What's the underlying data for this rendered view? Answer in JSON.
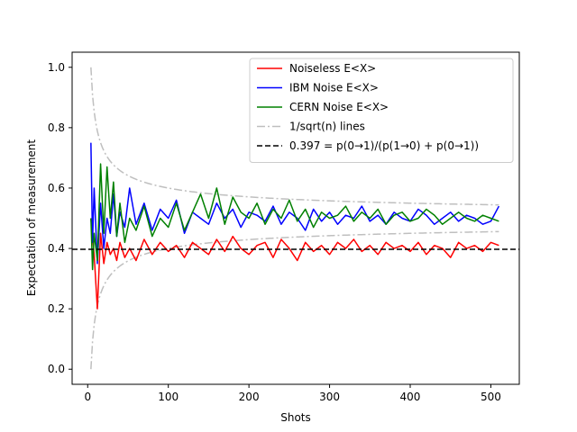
{
  "chart_data": {
    "type": "line",
    "xlabel": "Shots",
    "ylabel": "Expectation of measurement",
    "xlim": [
      -19.3,
      535.3
    ],
    "ylim": [
      -0.05,
      1.05
    ],
    "xticks": [
      0,
      100,
      200,
      300,
      400,
      500
    ],
    "yticks": [
      0.0,
      0.2,
      0.4,
      0.6,
      0.8,
      1.0
    ],
    "ytick_labels": [
      "0.0",
      "0.2",
      "0.4",
      "0.6",
      "0.8",
      "1.0"
    ],
    "grid": false,
    "legend_position": "top-right",
    "reference_line": {
      "label": "0.397 = p(0→1)/(p(1→0) + p(0→1))",
      "y": 0.397,
      "color": "#000000",
      "style": "dashed"
    },
    "bound_lines": {
      "label": "1/sqrt(n) lines",
      "color": "#bfbfbf",
      "style": "dashdot",
      "center": 0.5,
      "x_start": 4,
      "x_end": 510
    },
    "series": [
      {
        "name": "Noiseless E<X>",
        "color": "#ff0000",
        "x": [
          4,
          8,
          12,
          16,
          20,
          24,
          28,
          32,
          36,
          40,
          46,
          52,
          60,
          70,
          80,
          90,
          100,
          110,
          120,
          130,
          140,
          150,
          160,
          170,
          180,
          190,
          200,
          210,
          220,
          230,
          240,
          250,
          260,
          270,
          280,
          290,
          300,
          310,
          320,
          330,
          340,
          350,
          360,
          370,
          380,
          390,
          400,
          410,
          420,
          430,
          440,
          450,
          460,
          470,
          480,
          490,
          500,
          510
        ],
        "y": [
          0.5,
          0.38,
          0.2,
          0.45,
          0.35,
          0.42,
          0.38,
          0.4,
          0.36,
          0.42,
          0.37,
          0.4,
          0.36,
          0.43,
          0.38,
          0.42,
          0.39,
          0.41,
          0.37,
          0.42,
          0.4,
          0.38,
          0.43,
          0.39,
          0.44,
          0.4,
          0.38,
          0.41,
          0.42,
          0.37,
          0.43,
          0.4,
          0.36,
          0.42,
          0.39,
          0.41,
          0.38,
          0.42,
          0.4,
          0.43,
          0.39,
          0.41,
          0.38,
          0.42,
          0.4,
          0.41,
          0.39,
          0.42,
          0.38,
          0.41,
          0.4,
          0.37,
          0.42,
          0.4,
          0.41,
          0.39,
          0.42,
          0.41
        ]
      },
      {
        "name": "IBM Noise E<X>",
        "color": "#0000ff",
        "x": [
          4,
          6,
          8,
          12,
          16,
          20,
          24,
          28,
          32,
          36,
          40,
          46,
          52,
          60,
          70,
          80,
          90,
          100,
          110,
          120,
          130,
          140,
          150,
          160,
          170,
          180,
          190,
          200,
          210,
          220,
          230,
          240,
          250,
          260,
          270,
          280,
          290,
          300,
          310,
          320,
          330,
          340,
          350,
          360,
          370,
          380,
          390,
          400,
          410,
          420,
          430,
          440,
          450,
          460,
          470,
          480,
          490,
          500,
          510
        ],
        "y": [
          0.75,
          0.42,
          0.6,
          0.35,
          0.55,
          0.4,
          0.5,
          0.45,
          0.58,
          0.44,
          0.52,
          0.47,
          0.6,
          0.48,
          0.55,
          0.46,
          0.53,
          0.5,
          0.56,
          0.45,
          0.52,
          0.5,
          0.48,
          0.55,
          0.5,
          0.53,
          0.47,
          0.52,
          0.51,
          0.49,
          0.54,
          0.48,
          0.52,
          0.5,
          0.46,
          0.53,
          0.49,
          0.52,
          0.48,
          0.51,
          0.5,
          0.54,
          0.49,
          0.51,
          0.48,
          0.52,
          0.5,
          0.49,
          0.53,
          0.51,
          0.48,
          0.5,
          0.52,
          0.49,
          0.51,
          0.5,
          0.48,
          0.49,
          0.54
        ]
      },
      {
        "name": "CERN Noise E<X>",
        "color": "#008000",
        "x": [
          4,
          6,
          8,
          12,
          16,
          20,
          24,
          28,
          32,
          36,
          40,
          46,
          52,
          60,
          70,
          80,
          90,
          100,
          110,
          120,
          130,
          140,
          150,
          160,
          170,
          180,
          190,
          200,
          210,
          220,
          230,
          240,
          250,
          260,
          270,
          280,
          290,
          300,
          310,
          320,
          330,
          340,
          350,
          360,
          370,
          380,
          390,
          400,
          410,
          420,
          430,
          440,
          450,
          460,
          470,
          480,
          490,
          500,
          510
        ],
        "y": [
          0.5,
          0.33,
          0.45,
          0.36,
          0.68,
          0.45,
          0.67,
          0.5,
          0.62,
          0.44,
          0.55,
          0.42,
          0.5,
          0.46,
          0.54,
          0.44,
          0.5,
          0.47,
          0.55,
          0.46,
          0.52,
          0.58,
          0.5,
          0.6,
          0.48,
          0.57,
          0.52,
          0.5,
          0.55,
          0.48,
          0.53,
          0.5,
          0.56,
          0.49,
          0.53,
          0.47,
          0.52,
          0.5,
          0.51,
          0.54,
          0.49,
          0.52,
          0.5,
          0.53,
          0.48,
          0.51,
          0.52,
          0.49,
          0.5,
          0.53,
          0.51,
          0.48,
          0.5,
          0.52,
          0.5,
          0.49,
          0.51,
          0.5,
          0.49
        ]
      }
    ]
  }
}
